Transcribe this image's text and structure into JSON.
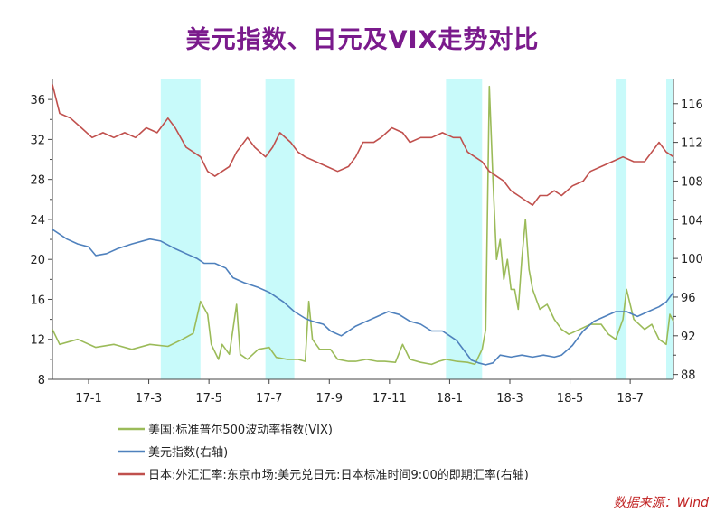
{
  "chart_data": {
    "type": "line",
    "title": "美元指数、日元及VIX走势对比",
    "source_note": "数据来源：Wind",
    "x_ticks": [
      "17-1",
      "17-3",
      "17-5",
      "17-7",
      "17-9",
      "17-11",
      "18-1",
      "18-3",
      "18-5",
      "18-7"
    ],
    "x_range": [
      2016.88,
      2018.6
    ],
    "left_axis": {
      "ticks": [
        8,
        12,
        16,
        20,
        24,
        28,
        32,
        36
      ],
      "ylim": [
        8,
        38
      ]
    },
    "right_axis": {
      "ticks": [
        88,
        92,
        96,
        100,
        104,
        108,
        112,
        116
      ],
      "ylim": [
        87.5,
        118.5
      ]
    },
    "highlight_periods": [
      [
        2017.18,
        2017.29
      ],
      [
        2017.47,
        2017.55
      ],
      [
        2017.97,
        2018.07
      ],
      [
        2018.44,
        2018.47
      ],
      [
        2018.58,
        2018.6
      ]
    ],
    "series": [
      {
        "name": "美国:标准普尔500波动率指数(VIX)",
        "axis": "left",
        "color": "#9bbb59",
        "points": [
          [
            2016.88,
            13.0
          ],
          [
            2016.9,
            11.5
          ],
          [
            2016.95,
            12.0
          ],
          [
            2017.0,
            11.2
          ],
          [
            2017.05,
            11.5
          ],
          [
            2017.1,
            11.0
          ],
          [
            2017.15,
            11.5
          ],
          [
            2017.2,
            11.3
          ],
          [
            2017.24,
            12.0
          ],
          [
            2017.27,
            12.6
          ],
          [
            2017.29,
            15.8
          ],
          [
            2017.31,
            14.5
          ],
          [
            2017.32,
            11.5
          ],
          [
            2017.34,
            10.0
          ],
          [
            2017.35,
            11.5
          ],
          [
            2017.37,
            10.5
          ],
          [
            2017.39,
            15.5
          ],
          [
            2017.4,
            10.5
          ],
          [
            2017.42,
            10.0
          ],
          [
            2017.45,
            11.0
          ],
          [
            2017.48,
            11.2
          ],
          [
            2017.5,
            10.2
          ],
          [
            2017.53,
            10.0
          ],
          [
            2017.56,
            10.0
          ],
          [
            2017.58,
            9.8
          ],
          [
            2017.59,
            15.8
          ],
          [
            2017.6,
            12.0
          ],
          [
            2017.62,
            11.0
          ],
          [
            2017.65,
            11.0
          ],
          [
            2017.67,
            10.0
          ],
          [
            2017.7,
            9.8
          ],
          [
            2017.72,
            9.8
          ],
          [
            2017.75,
            10.0
          ],
          [
            2017.78,
            9.8
          ],
          [
            2017.8,
            9.8
          ],
          [
            2017.83,
            9.7
          ],
          [
            2017.85,
            11.5
          ],
          [
            2017.87,
            10.0
          ],
          [
            2017.9,
            9.7
          ],
          [
            2017.93,
            9.5
          ],
          [
            2017.95,
            9.8
          ],
          [
            2017.97,
            10.0
          ],
          [
            2018.0,
            9.8
          ],
          [
            2018.03,
            9.7
          ],
          [
            2018.05,
            9.5
          ],
          [
            2018.07,
            11.0
          ],
          [
            2018.08,
            13.0
          ],
          [
            2018.09,
            37.3
          ],
          [
            2018.1,
            28.0
          ],
          [
            2018.11,
            20.0
          ],
          [
            2018.12,
            22.0
          ],
          [
            2018.13,
            18.0
          ],
          [
            2018.14,
            20.0
          ],
          [
            2018.15,
            17.0
          ],
          [
            2018.16,
            17.0
          ],
          [
            2018.17,
            15.0
          ],
          [
            2018.18,
            20.0
          ],
          [
            2018.19,
            24.0
          ],
          [
            2018.2,
            19.0
          ],
          [
            2018.21,
            17.0
          ],
          [
            2018.22,
            16.0
          ],
          [
            2018.23,
            15.0
          ],
          [
            2018.25,
            15.5
          ],
          [
            2018.27,
            14.0
          ],
          [
            2018.29,
            13.0
          ],
          [
            2018.31,
            12.5
          ],
          [
            2018.34,
            13.0
          ],
          [
            2018.37,
            13.5
          ],
          [
            2018.4,
            13.5
          ],
          [
            2018.42,
            12.5
          ],
          [
            2018.44,
            12.0
          ],
          [
            2018.46,
            14.0
          ],
          [
            2018.47,
            17.0
          ],
          [
            2018.49,
            14.0
          ],
          [
            2018.52,
            13.0
          ],
          [
            2018.54,
            13.5
          ],
          [
            2018.56,
            12.0
          ],
          [
            2018.58,
            11.5
          ],
          [
            2018.59,
            14.5
          ],
          [
            2018.6,
            13.8
          ]
        ]
      },
      {
        "name": "美元指数(右轴)",
        "axis": "right",
        "color": "#4f81bd",
        "points": [
          [
            2016.88,
            103.0
          ],
          [
            2016.92,
            102.0
          ],
          [
            2016.95,
            101.5
          ],
          [
            2016.98,
            101.2
          ],
          [
            2017.0,
            100.3
          ],
          [
            2017.03,
            100.5
          ],
          [
            2017.06,
            101.0
          ],
          [
            2017.1,
            101.5
          ],
          [
            2017.15,
            102.0
          ],
          [
            2017.18,
            101.8
          ],
          [
            2017.22,
            101.0
          ],
          [
            2017.25,
            100.5
          ],
          [
            2017.28,
            100.0
          ],
          [
            2017.3,
            99.5
          ],
          [
            2017.33,
            99.5
          ],
          [
            2017.36,
            99.0
          ],
          [
            2017.38,
            98.0
          ],
          [
            2017.41,
            97.5
          ],
          [
            2017.45,
            97.0
          ],
          [
            2017.48,
            96.5
          ],
          [
            2017.52,
            95.5
          ],
          [
            2017.55,
            94.5
          ],
          [
            2017.58,
            93.8
          ],
          [
            2017.6,
            93.5
          ],
          [
            2017.63,
            93.2
          ],
          [
            2017.65,
            92.5
          ],
          [
            2017.68,
            92.0
          ],
          [
            2017.7,
            92.5
          ],
          [
            2017.72,
            93.0
          ],
          [
            2017.75,
            93.5
          ],
          [
            2017.78,
            94.0
          ],
          [
            2017.81,
            94.5
          ],
          [
            2017.84,
            94.2
          ],
          [
            2017.87,
            93.5
          ],
          [
            2017.9,
            93.2
          ],
          [
            2017.93,
            92.5
          ],
          [
            2017.96,
            92.5
          ],
          [
            2017.98,
            92.0
          ],
          [
            2018.0,
            91.5
          ],
          [
            2018.02,
            90.5
          ],
          [
            2018.04,
            89.5
          ],
          [
            2018.06,
            89.2
          ],
          [
            2018.08,
            89.0
          ],
          [
            2018.1,
            89.2
          ],
          [
            2018.12,
            90.0
          ],
          [
            2018.15,
            89.8
          ],
          [
            2018.18,
            90.0
          ],
          [
            2018.21,
            89.8
          ],
          [
            2018.24,
            90.0
          ],
          [
            2018.27,
            89.8
          ],
          [
            2018.29,
            90.0
          ],
          [
            2018.32,
            91.0
          ],
          [
            2018.35,
            92.5
          ],
          [
            2018.38,
            93.5
          ],
          [
            2018.41,
            94.0
          ],
          [
            2018.44,
            94.5
          ],
          [
            2018.47,
            94.5
          ],
          [
            2018.5,
            94.0
          ],
          [
            2018.53,
            94.5
          ],
          [
            2018.56,
            95.0
          ],
          [
            2018.58,
            95.5
          ],
          [
            2018.6,
            96.5
          ]
        ]
      },
      {
        "name": "日本:外汇汇率:东京市场:美元兑日元:日本标准时间9:00的即期汇率(右轴)",
        "axis": "right",
        "color": "#c0504d",
        "points": [
          [
            2016.88,
            118.0
          ],
          [
            2016.9,
            115.0
          ],
          [
            2016.93,
            114.5
          ],
          [
            2016.96,
            113.5
          ],
          [
            2016.99,
            112.5
          ],
          [
            2017.02,
            113.0
          ],
          [
            2017.05,
            112.5
          ],
          [
            2017.08,
            113.0
          ],
          [
            2017.11,
            112.5
          ],
          [
            2017.14,
            113.5
          ],
          [
            2017.17,
            113.0
          ],
          [
            2017.2,
            114.5
          ],
          [
            2017.22,
            113.5
          ],
          [
            2017.25,
            111.5
          ],
          [
            2017.27,
            111.0
          ],
          [
            2017.29,
            110.5
          ],
          [
            2017.31,
            109.0
          ],
          [
            2017.33,
            108.5
          ],
          [
            2017.35,
            109.0
          ],
          [
            2017.37,
            109.5
          ],
          [
            2017.39,
            111.0
          ],
          [
            2017.42,
            112.5
          ],
          [
            2017.44,
            111.5
          ],
          [
            2017.47,
            110.5
          ],
          [
            2017.49,
            111.5
          ],
          [
            2017.51,
            113.0
          ],
          [
            2017.54,
            112.0
          ],
          [
            2017.56,
            111.0
          ],
          [
            2017.58,
            110.5
          ],
          [
            2017.61,
            110.0
          ],
          [
            2017.64,
            109.5
          ],
          [
            2017.67,
            109.0
          ],
          [
            2017.7,
            109.5
          ],
          [
            2017.72,
            110.5
          ],
          [
            2017.74,
            112.0
          ],
          [
            2017.77,
            112.0
          ],
          [
            2017.79,
            112.5
          ],
          [
            2017.82,
            113.5
          ],
          [
            2017.85,
            113.0
          ],
          [
            2017.87,
            112.0
          ],
          [
            2017.9,
            112.5
          ],
          [
            2017.93,
            112.5
          ],
          [
            2017.96,
            113.0
          ],
          [
            2017.99,
            112.5
          ],
          [
            2018.01,
            112.5
          ],
          [
            2018.03,
            111.0
          ],
          [
            2018.05,
            110.5
          ],
          [
            2018.07,
            110.0
          ],
          [
            2018.09,
            109.0
          ],
          [
            2018.11,
            108.5
          ],
          [
            2018.13,
            108.0
          ],
          [
            2018.15,
            107.0
          ],
          [
            2018.17,
            106.5
          ],
          [
            2018.19,
            106.0
          ],
          [
            2018.21,
            105.5
          ],
          [
            2018.23,
            106.5
          ],
          [
            2018.25,
            106.5
          ],
          [
            2018.27,
            107.0
          ],
          [
            2018.29,
            106.5
          ],
          [
            2018.32,
            107.5
          ],
          [
            2018.35,
            108.0
          ],
          [
            2018.37,
            109.0
          ],
          [
            2018.4,
            109.5
          ],
          [
            2018.43,
            110.0
          ],
          [
            2018.46,
            110.5
          ],
          [
            2018.49,
            110.0
          ],
          [
            2018.52,
            110.0
          ],
          [
            2018.54,
            111.0
          ],
          [
            2018.56,
            112.0
          ],
          [
            2018.58,
            111.0
          ],
          [
            2018.6,
            110.5
          ]
        ]
      }
    ]
  }
}
